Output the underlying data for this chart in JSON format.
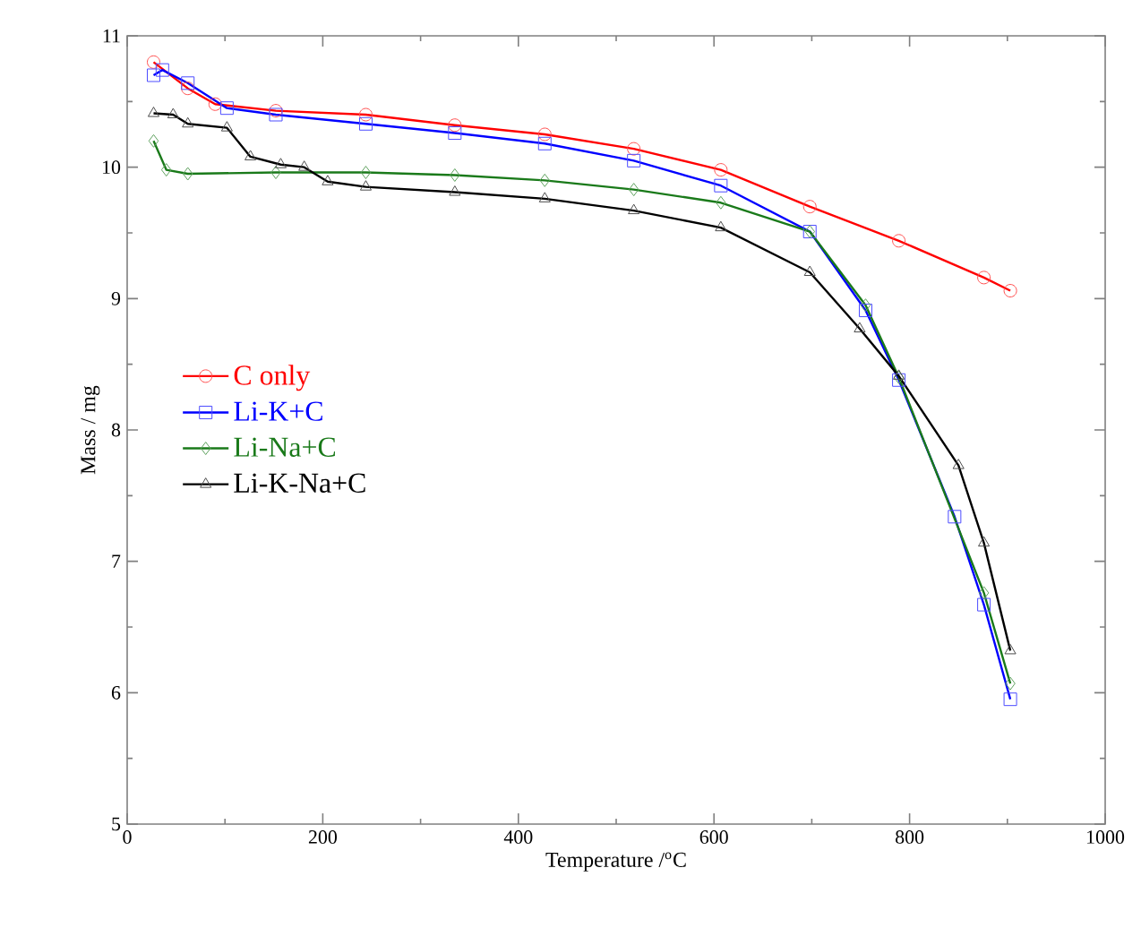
{
  "chart_data": {
    "type": "line",
    "xlabel": "Temperature /$^{o}$C",
    "ylabel": "Mass / mg",
    "xlim": [
      0,
      1000
    ],
    "ylim": [
      5,
      11
    ],
    "xticks": [
      0,
      200,
      400,
      600,
      800,
      1000
    ],
    "yticks": [
      5,
      6,
      7,
      8,
      9,
      10,
      11
    ],
    "legend": "left",
    "line_style": "solid",
    "series": [
      {
        "name": "C only",
        "color": "#ff0000",
        "marker": "circle",
        "x": [
          27,
          62,
          90,
          152,
          244,
          335,
          427,
          518,
          607,
          698,
          789,
          876,
          903
        ],
        "values": [
          10.8,
          10.6,
          10.48,
          10.43,
          10.4,
          10.32,
          10.25,
          10.14,
          9.98,
          9.7,
          9.44,
          9.16,
          9.06
        ]
      },
      {
        "name": "Li-K+C",
        "color": "#0000ff",
        "marker": "square",
        "x": [
          27,
          36,
          62,
          102,
          152,
          244,
          335,
          427,
          518,
          607,
          698,
          755,
          789,
          846,
          876,
          903
        ],
        "values": [
          10.7,
          10.74,
          10.64,
          10.45,
          10.4,
          10.33,
          10.26,
          10.18,
          10.05,
          9.86,
          9.51,
          8.91,
          8.38,
          7.34,
          6.67,
          5.95
        ]
      },
      {
        "name": "Li-Na+C",
        "color": "#1a7a1a",
        "marker": "diamond",
        "x": [
          27,
          40,
          62,
          152,
          244,
          335,
          427,
          518,
          607,
          698,
          755,
          789,
          876,
          903
        ],
        "values": [
          10.2,
          9.98,
          9.95,
          9.96,
          9.96,
          9.94,
          9.9,
          9.83,
          9.73,
          9.51,
          8.95,
          8.4,
          6.76,
          6.07
        ]
      },
      {
        "name": "Li-K-Na+C",
        "color": "#000000",
        "marker": "triangle",
        "x": [
          27,
          47,
          62,
          102,
          126,
          157,
          181,
          205,
          244,
          335,
          427,
          518,
          607,
          698,
          749,
          789,
          850,
          876,
          903
        ],
        "values": [
          10.41,
          10.4,
          10.33,
          10.3,
          10.08,
          10.02,
          10.0,
          9.89,
          9.85,
          9.81,
          9.76,
          9.67,
          9.54,
          9.2,
          8.77,
          8.41,
          7.73,
          7.14,
          6.32
        ]
      }
    ]
  }
}
